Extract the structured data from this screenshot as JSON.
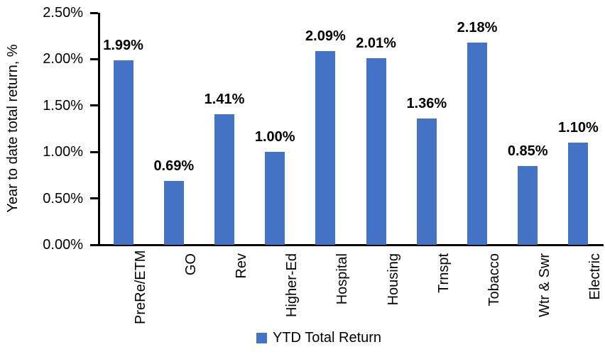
{
  "chart_data": {
    "type": "bar",
    "title": "",
    "xlabel": "",
    "ylabel": "Year to date total return, %",
    "categories": [
      "PreRe/ETM",
      "GO",
      "Rev",
      "Higher-Ed",
      "Hospital",
      "Housing",
      "Trnspt",
      "Tobacco",
      "Wtr & Swr",
      "Electric"
    ],
    "series": [
      {
        "name": "YTD Total Return",
        "values": [
          1.99,
          0.69,
          1.41,
          1.0,
          2.09,
          2.01,
          1.36,
          2.18,
          0.85,
          1.1
        ],
        "data_labels": [
          "1.99%",
          "0.69%",
          "1.41%",
          "1.00%",
          "2.09%",
          "2.01%",
          "1.36%",
          "2.18%",
          "0.85%",
          "1.10%"
        ]
      }
    ],
    "ylim": [
      0,
      2.5
    ],
    "ytick_step": 0.5,
    "ytick_labels": [
      "0.00%",
      "0.50%",
      "1.00%",
      "1.50%",
      "2.00%",
      "2.50%"
    ],
    "grid": false,
    "legend_position": "bottom",
    "legend": [
      {
        "label": "YTD Total Return",
        "color": "#4472C4"
      }
    ],
    "bar_color": "#4472C4",
    "axis_color": "#000000",
    "label_color": "#000000"
  }
}
